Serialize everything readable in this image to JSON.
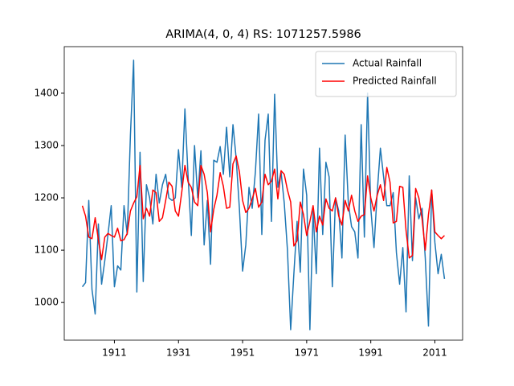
{
  "chart_data": {
    "type": "line",
    "title": "ARIMA(4, 0, 4) RS: 1071257.5986",
    "x": [
      1901,
      1902,
      1903,
      1904,
      1905,
      1906,
      1907,
      1908,
      1909,
      1910,
      1911,
      1912,
      1913,
      1914,
      1915,
      1916,
      1917,
      1918,
      1919,
      1920,
      1921,
      1922,
      1923,
      1924,
      1925,
      1926,
      1927,
      1928,
      1929,
      1930,
      1931,
      1932,
      1933,
      1934,
      1935,
      1936,
      1937,
      1938,
      1939,
      1940,
      1941,
      1942,
      1943,
      1944,
      1945,
      1946,
      1947,
      1948,
      1949,
      1950,
      1951,
      1952,
      1953,
      1954,
      1955,
      1956,
      1957,
      1958,
      1959,
      1960,
      1961,
      1962,
      1963,
      1964,
      1965,
      1966,
      1967,
      1968,
      1969,
      1970,
      1971,
      1972,
      1973,
      1974,
      1975,
      1976,
      1977,
      1978,
      1979,
      1980,
      1981,
      1982,
      1983,
      1984,
      1985,
      1986,
      1987,
      1988,
      1989,
      1990,
      1991,
      1992,
      1993,
      1994,
      1995,
      1996,
      1997,
      1998,
      1999,
      2000,
      2001,
      2002,
      2003,
      2004,
      2005,
      2006,
      2007,
      2008,
      2009,
      2010,
      2011,
      2012,
      2013,
      2014
    ],
    "series": [
      {
        "name": "Actual Rainfall",
        "color": "#1f77b4",
        "values": [
          1030,
          1038,
          1195,
          1025,
          978,
          1150,
          1035,
          1080,
          1130,
          1185,
          1030,
          1070,
          1062,
          1185,
          1130,
          1320,
          1463,
          1020,
          1287,
          1040,
          1225,
          1200,
          1150,
          1245,
          1190,
          1225,
          1245,
          1200,
          1195,
          1200,
          1292,
          1220,
          1370,
          1240,
          1128,
          1300,
          1200,
          1290,
          1110,
          1195,
          1073,
          1272,
          1268,
          1298,
          1245,
          1335,
          1240,
          1340,
          1275,
          1180,
          1060,
          1110,
          1220,
          1180,
          1250,
          1360,
          1130,
          1310,
          1360,
          1155,
          1398,
          1220,
          1250,
          1190,
          1100,
          948,
          1055,
          1155,
          1058,
          1255,
          1205,
          948,
          1175,
          1055,
          1295,
          1130,
          1268,
          1240,
          1030,
          1200,
          1175,
          1085,
          1320,
          1190,
          1145,
          1135,
          1085,
          1340,
          1125,
          1400,
          1180,
          1105,
          1210,
          1295,
          1240,
          1185,
          1185,
          1210,
          1095,
          1035,
          1105,
          982,
          1242,
          1080,
          1200,
          1160,
          1180,
          1085,
          955,
          1215,
          1115,
          1055,
          1092,
          1045
        ]
      },
      {
        "name": "Predicted Rainfall",
        "color": "#ff0000",
        "values": [
          1185,
          1165,
          1125,
          1122,
          1162,
          1120,
          1082,
          1125,
          1132,
          1128,
          1125,
          1142,
          1118,
          1120,
          1132,
          1175,
          1190,
          1202,
          1262,
          1160,
          1180,
          1165,
          1215,
          1210,
          1155,
          1162,
          1195,
          1230,
          1222,
          1175,
          1165,
          1210,
          1262,
          1230,
          1220,
          1192,
          1185,
          1262,
          1245,
          1210,
          1135,
          1178,
          1205,
          1248,
          1222,
          1180,
          1182,
          1265,
          1280,
          1250,
          1195,
          1172,
          1180,
          1198,
          1218,
          1182,
          1192,
          1245,
          1225,
          1232,
          1255,
          1198,
          1252,
          1245,
          1215,
          1192,
          1108,
          1118,
          1192,
          1168,
          1128,
          1155,
          1185,
          1135,
          1165,
          1148,
          1198,
          1180,
          1175,
          1200,
          1165,
          1148,
          1195,
          1175,
          1205,
          1175,
          1155,
          1165,
          1168,
          1242,
          1200,
          1175,
          1205,
          1225,
          1195,
          1258,
          1230,
          1152,
          1155,
          1222,
          1220,
          1138,
          1085,
          1090,
          1218,
          1200,
          1160,
          1100,
          1168,
          1215,
          1135,
          1128,
          1122,
          1128
        ]
      }
    ],
    "xlim": [
      1895.35,
      2019.65
    ],
    "xticks": [
      1911,
      1931,
      1951,
      1971,
      1991,
      2011
    ],
    "ylim": [
      928,
      1489
    ],
    "yticks": [
      1000,
      1100,
      1200,
      1300,
      1400
    ],
    "grid": false,
    "legend": "upper right"
  }
}
